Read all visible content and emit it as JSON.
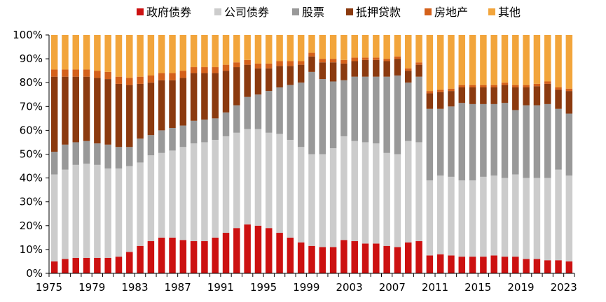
{
  "chart_data": {
    "type": "bar",
    "stacked": true,
    "normalized": true,
    "title": "",
    "xlabel": "",
    "ylabel": "",
    "ylim": [
      0,
      100
    ],
    "y_ticks": [
      "0%",
      "10%",
      "20%",
      "30%",
      "40%",
      "50%",
      "60%",
      "70%",
      "80%",
      "90%",
      "100%"
    ],
    "x_tick_labels": [
      "1975",
      "1979",
      "1983",
      "1987",
      "1991",
      "1995",
      "1999",
      "2003",
      "2007",
      "2011",
      "2015",
      "2019",
      "2023"
    ],
    "legend_position": "top",
    "categories": [
      "1975",
      "1976",
      "1977",
      "1978",
      "1979",
      "1980",
      "1981",
      "1982",
      "1983",
      "1984",
      "1985",
      "1986",
      "1987",
      "1988",
      "1989",
      "1990",
      "1991",
      "1992",
      "1993",
      "1994",
      "1995",
      "1996",
      "1997",
      "1998",
      "1999",
      "2000",
      "2001",
      "2002",
      "2003",
      "2004",
      "2005",
      "2006",
      "2007",
      "2008",
      "2009",
      "2010",
      "2011",
      "2012",
      "2013",
      "2014",
      "2015",
      "2016",
      "2017",
      "2018",
      "2019",
      "2020",
      "2021",
      "2022",
      "2023"
    ],
    "series": [
      {
        "name": "政府债券",
        "color": "#cc1111",
        "values": [
          5,
          6,
          6.5,
          6.5,
          6.5,
          6.5,
          7,
          9,
          11.5,
          13.5,
          15,
          15,
          14,
          13.5,
          13.5,
          15,
          17,
          19,
          20.5,
          20,
          19,
          17,
          15,
          13,
          11.5,
          11,
          11,
          14,
          13.5,
          12.5,
          12.5,
          11.5,
          11,
          13,
          13.5,
          7.5,
          8,
          7.5,
          7,
          7,
          7,
          7.5,
          7,
          7,
          6,
          6,
          5.5,
          5.5,
          5
        ]
      },
      {
        "name": "公司债券",
        "color": "#cccccc",
        "values": [
          36.5,
          37.5,
          39,
          39.5,
          39,
          37.5,
          37,
          36,
          35,
          36,
          35.5,
          36.5,
          39,
          41,
          41.5,
          41,
          40.5,
          40,
          40,
          40.5,
          40,
          41.5,
          41,
          40,
          38.5,
          39,
          41.5,
          43.5,
          42,
          42.5,
          42,
          39,
          39,
          42.5,
          41.5,
          31.5,
          33,
          33,
          32,
          32,
          33.5,
          33.5,
          33,
          34.5,
          34,
          34,
          34.5,
          38,
          36
        ]
      },
      {
        "name": "股票",
        "color": "#999999",
        "values": [
          9.5,
          10.5,
          9.5,
          9.5,
          9,
          10,
          9,
          8,
          10,
          8.5,
          9.5,
          9.5,
          9,
          9.5,
          9.5,
          9,
          10,
          11.5,
          13.5,
          14.5,
          17.5,
          19.5,
          23,
          27,
          34.5,
          31.5,
          28,
          23.5,
          27,
          27.5,
          28,
          32,
          33,
          24.5,
          27.5,
          30,
          28,
          29.5,
          32.5,
          32,
          30.5,
          30,
          31.5,
          27,
          30.5,
          30.5,
          31,
          25.5,
          26
        ]
      },
      {
        "name": "抵押贷款",
        "color": "#8b3a0f",
        "values": [
          31.5,
          28.5,
          27.5,
          27,
          27.5,
          27.5,
          26.5,
          26,
          23,
          22,
          21,
          20,
          20,
          20,
          19.5,
          19,
          17.5,
          16,
          13.5,
          11,
          9.5,
          9,
          8,
          7.5,
          6.5,
          7,
          8,
          7,
          6.5,
          7,
          7,
          6.5,
          7,
          5,
          5,
          6.5,
          7,
          6.5,
          6.5,
          7,
          7,
          7,
          7.5,
          9.5,
          7.5,
          8,
          8.5,
          8,
          9.5
        ]
      },
      {
        "name": "房地产",
        "color": "#d4611b",
        "values": [
          3,
          3,
          3,
          3,
          3,
          3,
          3,
          3,
          3,
          3,
          3,
          3,
          3,
          2.5,
          2.5,
          2.5,
          2.5,
          2,
          2,
          2,
          2,
          2,
          2,
          1.5,
          1.5,
          1.5,
          1.5,
          1.5,
          1.5,
          1,
          1,
          1,
          1,
          1,
          1,
          1,
          1,
          1,
          1,
          1,
          1,
          1,
          1,
          1,
          1,
          1,
          1,
          1,
          1
        ]
      },
      {
        "name": "其他",
        "color": "#f2a53c",
        "values": [
          14.5,
          14.5,
          14.5,
          14.5,
          15,
          15.5,
          17.5,
          18,
          17.5,
          17,
          16,
          16,
          15,
          13.5,
          13.5,
          13.5,
          12.5,
          11.5,
          10.5,
          12,
          12,
          11,
          11,
          11,
          7.5,
          10,
          10,
          10.5,
          9.5,
          9.5,
          9.5,
          10,
          9,
          14,
          11.5,
          23.5,
          23,
          22.5,
          21,
          21,
          21,
          21,
          20,
          21,
          21,
          20.5,
          19.5,
          22,
          22.5
        ]
      }
    ]
  }
}
